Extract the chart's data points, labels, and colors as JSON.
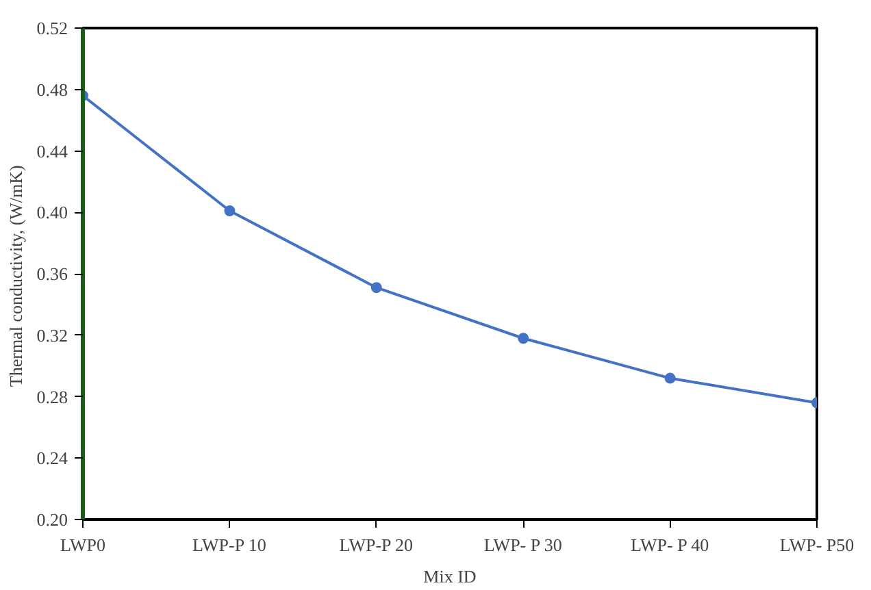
{
  "chart_data": {
    "type": "line",
    "xlabel": "Mix ID",
    "ylabel": "Thermal conductivity,  (W/mK)",
    "categories": [
      "LWP0",
      "LWP-P 10",
      "LWP-P 20",
      "LWP- P 30",
      "LWP- P 40",
      "LWP- P50"
    ],
    "series": [
      {
        "color": "#4472c4",
        "values": [
          0.476,
          0.401,
          0.351,
          0.318,
          0.292,
          0.276
        ]
      }
    ],
    "ylim": [
      0.2,
      0.52
    ],
    "yticks": [
      {
        "value": 0.2,
        "label": "0.20"
      },
      {
        "value": 0.24,
        "label": "0.24"
      },
      {
        "value": 0.28,
        "label": "0.28"
      },
      {
        "value": 0.32,
        "label": "0.32"
      },
      {
        "value": 0.36,
        "label": "0.36"
      },
      {
        "value": 0.4,
        "label": "0.40"
      },
      {
        "value": 0.44,
        "label": "0.44"
      },
      {
        "value": 0.48,
        "label": "0.48"
      },
      {
        "value": 0.52,
        "label": "0.52"
      }
    ],
    "grid": false,
    "marker": "circle",
    "line_style": "solid"
  }
}
